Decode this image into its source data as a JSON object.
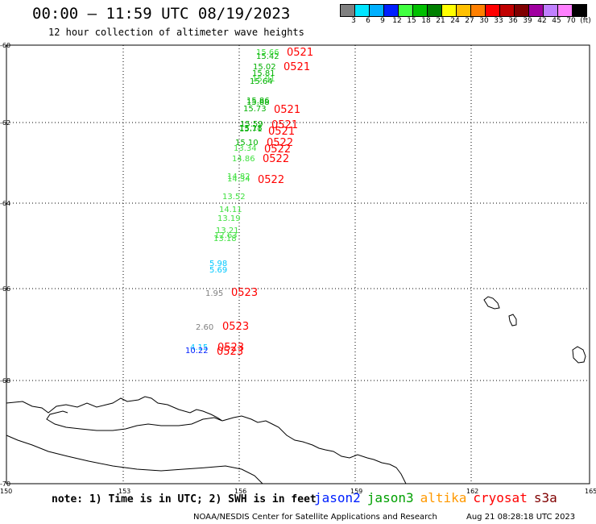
{
  "header": {
    "title": "00:00 – 11:59 UTC 08/19/2023",
    "subtitle": "12 hour collection of altimeter wave heights"
  },
  "colorbar": {
    "colors": [
      "#808080",
      "#00e5ff",
      "#00b0ff",
      "#0020ff",
      "#40ff40",
      "#00c000",
      "#008000",
      "#ffff00",
      "#ffc000",
      "#ff8000",
      "#ff0000",
      "#c00000",
      "#800000",
      "#a000a0",
      "#c080ff",
      "#ff80ff",
      "#000000"
    ],
    "labels": [
      "3",
      "6",
      "9",
      "12",
      "15",
      "18",
      "21",
      "24",
      "27",
      "30",
      "33",
      "36",
      "39",
      "42",
      "45",
      "70",
      "(ft)"
    ]
  },
  "map": {
    "lat_labels": [
      "-60",
      "-62",
      "-64",
      "-66",
      "-68",
      "-70"
    ],
    "lon_labels": [
      "150",
      "153",
      "156",
      "159",
      "162",
      "165"
    ],
    "colors": {
      "gray": "#808080",
      "lightgreen": "#40e040",
      "green": "#00b000",
      "red": "#ff0000",
      "cyan": "#00c8ff",
      "blue": "#0020ff"
    },
    "observations": [
      {
        "text": "15.66",
        "color": "lightgreen"
      },
      {
        "text": "15.42",
        "color": "green"
      },
      {
        "text": "15.02",
        "color": "green"
      },
      {
        "text": "15.81",
        "color": "green"
      },
      {
        "text": "15.91",
        "color": "lightgreen"
      },
      {
        "text": "15.64",
        "color": "green"
      },
      {
        "text": "15.86",
        "color": "green"
      },
      {
        "text": "15.88",
        "color": "green"
      },
      {
        "text": "15.73",
        "color": "green"
      },
      {
        "text": "15.59",
        "color": "green"
      },
      {
        "text": "15.71",
        "color": "green"
      },
      {
        "text": "15.18",
        "color": "green"
      },
      {
        "text": "15.10",
        "color": "green"
      },
      {
        "text": "13.34",
        "color": "lightgreen"
      },
      {
        "text": "14.86",
        "color": "lightgreen"
      },
      {
        "text": "14.82",
        "color": "lightgreen"
      },
      {
        "text": "14.34",
        "color": "lightgreen"
      },
      {
        "text": "13.52",
        "color": "lightgreen"
      },
      {
        "text": "14.11",
        "color": "lightgreen"
      },
      {
        "text": "13.19",
        "color": "lightgreen"
      },
      {
        "text": "13.21",
        "color": "lightgreen"
      },
      {
        "text": "12.63",
        "color": "lightgreen"
      },
      {
        "text": "13.18",
        "color": "lightgreen"
      },
      {
        "text": "5.98",
        "color": "cyan"
      },
      {
        "text": "5.69",
        "color": "cyan"
      },
      {
        "text": "1.95",
        "color": "gray"
      },
      {
        "text": "2.60",
        "color": "gray"
      },
      {
        "text": "4.15",
        "color": "cyan"
      },
      {
        "text": "10.22",
        "color": "blue"
      }
    ],
    "passes": [
      {
        "text": "0521",
        "color": "red"
      },
      {
        "text": "0521",
        "color": "red"
      },
      {
        "text": "0521",
        "color": "red"
      },
      {
        "text": "0521",
        "color": "red"
      },
      {
        "text": "0521",
        "color": "red"
      },
      {
        "text": "0522",
        "color": "red"
      },
      {
        "text": "0522",
        "color": "red"
      },
      {
        "text": "0522",
        "color": "red"
      },
      {
        "text": "0522",
        "color": "red"
      },
      {
        "text": "0523",
        "color": "red"
      },
      {
        "text": "0523",
        "color": "red"
      },
      {
        "text": "0523",
        "color": "red"
      },
      {
        "text": "0523",
        "color": "red"
      }
    ]
  },
  "note": "note: 1) Time is in UTC; 2) SWH is in feet",
  "legend": {
    "items": [
      {
        "label": "jason2",
        "color": "#0020ff"
      },
      {
        "label": "jason3",
        "color": "#00a000"
      },
      {
        "label": "altika",
        "color": "#ff9900"
      },
      {
        "label": "cryosat",
        "color": "#ff0000"
      },
      {
        "label": "s3a",
        "color": "#800000"
      }
    ]
  },
  "footer": {
    "credit": "NOAA/NESDIS Center for Satellite Applications and Research",
    "timestamp": "Aug 21 08:28:18 UTC 2023"
  }
}
